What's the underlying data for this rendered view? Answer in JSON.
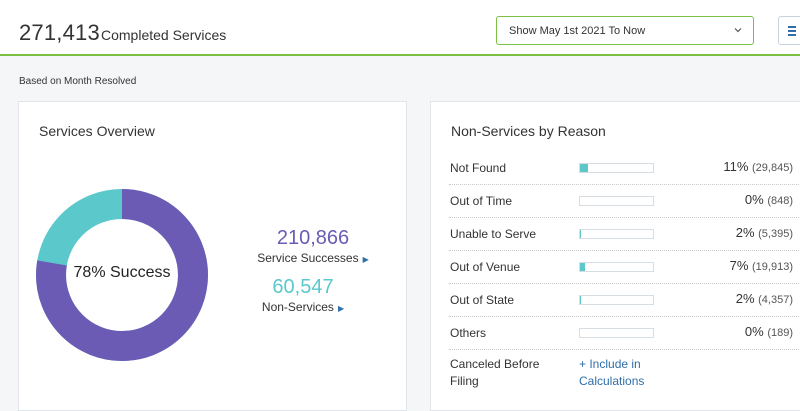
{
  "header": {
    "total_count": "271,413",
    "total_label": "Completed Services",
    "date_range": "Show May 1st 2021 To Now"
  },
  "based_on": "Based on Month Resolved",
  "overview": {
    "title": "Services Overview",
    "donut_label": "78% Success",
    "success_fraction": 0.777,
    "successes_value": "210,866",
    "successes_label": "Service Successes",
    "non_services_value": "60,547",
    "non_services_label": "Non-Services"
  },
  "reasons": {
    "title": "Non-Services by Reason",
    "rows": [
      {
        "name": "Not Found",
        "pct": "11%",
        "count": "(29,845)",
        "fraction": 0.11
      },
      {
        "name": "Out of Time",
        "pct": "0%",
        "count": "(848)",
        "fraction": 0.0
      },
      {
        "name": "Unable to Serve",
        "pct": "2%",
        "count": "(5,395)",
        "fraction": 0.02
      },
      {
        "name": "Out of Venue",
        "pct": "7%",
        "count": "(19,913)",
        "fraction": 0.07
      },
      {
        "name": "Out of State",
        "pct": "2%",
        "count": "(4,357)",
        "fraction": 0.02
      },
      {
        "name": "Others",
        "pct": "0%",
        "count": "(189)",
        "fraction": 0.0
      }
    ],
    "canceled": {
      "name": "Canceled Before Filing",
      "link": "+ Include in Calculations"
    }
  },
  "colors": {
    "accent_green": "#7ac143",
    "success_purple": "#6b5bb5",
    "non_service_teal": "#5bc8cc",
    "link_blue": "#2f6ea8"
  },
  "icons": [
    "chevron-down-icon",
    "menu-icon",
    "arrow-right-icon"
  ]
}
